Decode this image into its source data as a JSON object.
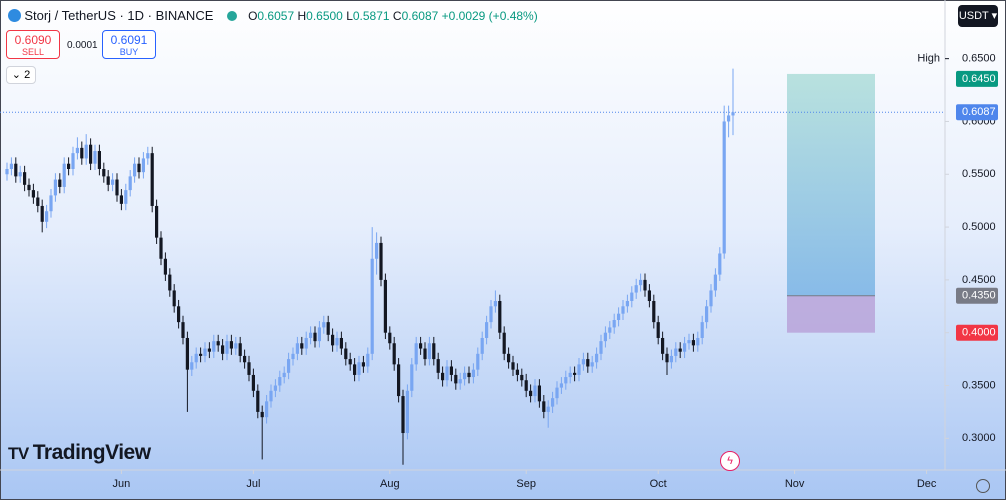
{
  "header": {
    "symbol": "Storj / TetherUS · 1D · BINANCE",
    "o_label": "O",
    "o": "0.6057",
    "h_label": "H",
    "h": "0.6500",
    "l_label": "L",
    "l": "0.5871",
    "c_label": "C",
    "c": "0.6087",
    "change": "+0.0029 (+0.48%)",
    "sell_price": "0.6090",
    "sell": "SELL",
    "spread": "0.0001",
    "buy_price": "0.6091",
    "buy": "BUY",
    "indicators": "2",
    "currency": "USDT",
    "logo": "TradingView"
  },
  "chart_data": {
    "type": "candlestick",
    "up_color": "#79a6f2",
    "down_color": "#131722",
    "ylim": [
      0.27,
      0.715
    ],
    "yticks": [
      {
        "value": 0.3,
        "label": "0.3000"
      },
      {
        "value": 0.35,
        "label": "0.3500"
      },
      {
        "value": 0.4,
        "label": "0.4000"
      },
      {
        "value": 0.45,
        "label": "0.4500"
      },
      {
        "value": 0.5,
        "label": "0.5000"
      },
      {
        "value": 0.55,
        "label": "0.5500"
      },
      {
        "value": 0.6,
        "label": "0.6000"
      }
    ],
    "xticks": [
      {
        "value": 26,
        "label": "Jun"
      },
      {
        "value": 56,
        "label": "Jul"
      },
      {
        "value": 87,
        "label": "Aug"
      },
      {
        "value": 118,
        "label": "Sep"
      },
      {
        "value": 148,
        "label": "Oct"
      },
      {
        "value": 179,
        "label": "Nov"
      },
      {
        "value": 209,
        "label": "Dec"
      }
    ],
    "high": {
      "label": "High",
      "value": 0.65,
      "value_label": "0.6500"
    },
    "last_price": {
      "value": 0.6087,
      "value_label": "0.6087",
      "color": "#4f86ec"
    },
    "position": {
      "target": 0.645,
      "target_label": "0.6450",
      "target_color": "#089981",
      "entry": 0.435,
      "entry_label": "0.4350",
      "entry_color": "#787b86",
      "stop": 0.4,
      "stop_label": "0.4000",
      "stop_color": "#f23645"
    },
    "candles": [
      [
        0.55,
        0.561,
        0.544,
        0.555
      ],
      [
        0.555,
        0.566,
        0.549,
        0.56
      ],
      [
        0.56,
        0.566,
        0.542,
        0.548
      ],
      [
        0.548,
        0.558,
        0.542,
        0.552
      ],
      [
        0.552,
        0.558,
        0.534,
        0.54
      ],
      [
        0.54,
        0.546,
        0.529,
        0.535
      ],
      [
        0.535,
        0.541,
        0.522,
        0.528
      ],
      [
        0.528,
        0.534,
        0.514,
        0.52
      ],
      [
        0.52,
        0.526,
        0.495,
        0.505
      ],
      [
        0.505,
        0.521,
        0.499,
        0.515
      ],
      [
        0.515,
        0.536,
        0.509,
        0.53
      ],
      [
        0.53,
        0.551,
        0.524,
        0.545
      ],
      [
        0.545,
        0.551,
        0.532,
        0.538
      ],
      [
        0.538,
        0.566,
        0.532,
        0.56
      ],
      [
        0.56,
        0.566,
        0.549,
        0.555
      ],
      [
        0.555,
        0.576,
        0.549,
        0.57
      ],
      [
        0.57,
        0.585,
        0.564,
        0.575
      ],
      [
        0.575,
        0.581,
        0.559,
        0.565
      ],
      [
        0.565,
        0.588,
        0.559,
        0.578
      ],
      [
        0.578,
        0.584,
        0.554,
        0.56
      ],
      [
        0.56,
        0.578,
        0.554,
        0.572
      ],
      [
        0.572,
        0.578,
        0.549,
        0.555
      ],
      [
        0.555,
        0.561,
        0.542,
        0.548
      ],
      [
        0.548,
        0.554,
        0.534,
        0.54
      ],
      [
        0.54,
        0.551,
        0.534,
        0.545
      ],
      [
        0.545,
        0.551,
        0.524,
        0.53
      ],
      [
        0.53,
        0.536,
        0.516,
        0.522
      ],
      [
        0.522,
        0.541,
        0.516,
        0.535
      ],
      [
        0.535,
        0.554,
        0.529,
        0.548
      ],
      [
        0.548,
        0.566,
        0.542,
        0.56
      ],
      [
        0.56,
        0.566,
        0.546,
        0.552
      ],
      [
        0.552,
        0.571,
        0.546,
        0.565
      ],
      [
        0.565,
        0.576,
        0.559,
        0.57
      ],
      [
        0.57,
        0.576,
        0.514,
        0.52
      ],
      [
        0.52,
        0.526,
        0.484,
        0.49
      ],
      [
        0.49,
        0.496,
        0.464,
        0.47
      ],
      [
        0.47,
        0.476,
        0.449,
        0.455
      ],
      [
        0.455,
        0.461,
        0.434,
        0.44
      ],
      [
        0.44,
        0.446,
        0.419,
        0.425
      ],
      [
        0.425,
        0.431,
        0.404,
        0.41
      ],
      [
        0.41,
        0.416,
        0.389,
        0.395
      ],
      [
        0.395,
        0.401,
        0.325,
        0.365
      ],
      [
        0.365,
        0.378,
        0.359,
        0.372
      ],
      [
        0.372,
        0.386,
        0.366,
        0.38
      ],
      [
        0.38,
        0.386,
        0.372,
        0.378
      ],
      [
        0.378,
        0.391,
        0.372,
        0.385
      ],
      [
        0.385,
        0.391,
        0.376,
        0.382
      ],
      [
        0.382,
        0.398,
        0.376,
        0.392
      ],
      [
        0.392,
        0.398,
        0.382,
        0.388
      ],
      [
        0.388,
        0.394,
        0.374,
        0.38
      ],
      [
        0.38,
        0.398,
        0.374,
        0.392
      ],
      [
        0.392,
        0.398,
        0.379,
        0.385
      ],
      [
        0.385,
        0.396,
        0.379,
        0.39
      ],
      [
        0.39,
        0.396,
        0.372,
        0.378
      ],
      [
        0.378,
        0.384,
        0.366,
        0.372
      ],
      [
        0.372,
        0.378,
        0.354,
        0.36
      ],
      [
        0.36,
        0.366,
        0.339,
        0.345
      ],
      [
        0.345,
        0.351,
        0.319,
        0.325
      ],
      [
        0.325,
        0.331,
        0.28,
        0.32
      ],
      [
        0.32,
        0.341,
        0.314,
        0.335
      ],
      [
        0.335,
        0.351,
        0.329,
        0.345
      ],
      [
        0.345,
        0.356,
        0.339,
        0.35
      ],
      [
        0.35,
        0.364,
        0.344,
        0.358
      ],
      [
        0.358,
        0.368,
        0.352,
        0.362
      ],
      [
        0.362,
        0.381,
        0.356,
        0.375
      ],
      [
        0.375,
        0.386,
        0.369,
        0.38
      ],
      [
        0.38,
        0.396,
        0.374,
        0.39
      ],
      [
        0.39,
        0.396,
        0.379,
        0.385
      ],
      [
        0.385,
        0.401,
        0.379,
        0.395
      ],
      [
        0.395,
        0.406,
        0.389,
        0.4
      ],
      [
        0.4,
        0.406,
        0.386,
        0.392
      ],
      [
        0.392,
        0.411,
        0.386,
        0.405
      ],
      [
        0.405,
        0.416,
        0.399,
        0.41
      ],
      [
        0.41,
        0.416,
        0.392,
        0.398
      ],
      [
        0.398,
        0.404,
        0.382,
        0.388
      ],
      [
        0.388,
        0.401,
        0.382,
        0.395
      ],
      [
        0.395,
        0.401,
        0.379,
        0.385
      ],
      [
        0.385,
        0.391,
        0.369,
        0.375
      ],
      [
        0.375,
        0.381,
        0.364,
        0.37
      ],
      [
        0.37,
        0.376,
        0.354,
        0.36
      ],
      [
        0.36,
        0.378,
        0.354,
        0.372
      ],
      [
        0.372,
        0.378,
        0.362,
        0.368
      ],
      [
        0.368,
        0.386,
        0.362,
        0.38
      ],
      [
        0.38,
        0.5,
        0.374,
        0.47
      ],
      [
        0.47,
        0.495,
        0.455,
        0.485
      ],
      [
        0.485,
        0.491,
        0.444,
        0.45
      ],
      [
        0.45,
        0.456,
        0.394,
        0.4
      ],
      [
        0.4,
        0.406,
        0.384,
        0.39
      ],
      [
        0.39,
        0.396,
        0.364,
        0.37
      ],
      [
        0.37,
        0.376,
        0.334,
        0.34
      ],
      [
        0.34,
        0.346,
        0.275,
        0.305
      ],
      [
        0.305,
        0.351,
        0.299,
        0.345
      ],
      [
        0.345,
        0.376,
        0.339,
        0.37
      ],
      [
        0.37,
        0.396,
        0.364,
        0.39
      ],
      [
        0.39,
        0.396,
        0.379,
        0.385
      ],
      [
        0.385,
        0.391,
        0.369,
        0.375
      ],
      [
        0.375,
        0.396,
        0.369,
        0.39
      ],
      [
        0.39,
        0.396,
        0.369,
        0.375
      ],
      [
        0.375,
        0.381,
        0.356,
        0.362
      ],
      [
        0.362,
        0.368,
        0.349,
        0.355
      ],
      [
        0.355,
        0.374,
        0.349,
        0.368
      ],
      [
        0.368,
        0.374,
        0.354,
        0.36
      ],
      [
        0.36,
        0.366,
        0.346,
        0.352
      ],
      [
        0.352,
        0.362,
        0.346,
        0.356
      ],
      [
        0.356,
        0.368,
        0.35,
        0.362
      ],
      [
        0.362,
        0.368,
        0.352,
        0.358
      ],
      [
        0.358,
        0.371,
        0.352,
        0.365
      ],
      [
        0.365,
        0.386,
        0.359,
        0.38
      ],
      [
        0.38,
        0.401,
        0.374,
        0.395
      ],
      [
        0.395,
        0.416,
        0.389,
        0.41
      ],
      [
        0.41,
        0.431,
        0.404,
        0.425
      ],
      [
        0.425,
        0.44,
        0.419,
        0.43
      ],
      [
        0.43,
        0.436,
        0.394,
        0.4
      ],
      [
        0.4,
        0.406,
        0.374,
        0.38
      ],
      [
        0.38,
        0.386,
        0.366,
        0.372
      ],
      [
        0.372,
        0.378,
        0.359,
        0.365
      ],
      [
        0.365,
        0.371,
        0.354,
        0.36
      ],
      [
        0.36,
        0.366,
        0.349,
        0.355
      ],
      [
        0.355,
        0.361,
        0.339,
        0.345
      ],
      [
        0.345,
        0.351,
        0.334,
        0.34
      ],
      [
        0.34,
        0.356,
        0.334,
        0.35
      ],
      [
        0.35,
        0.356,
        0.329,
        0.335
      ],
      [
        0.335,
        0.341,
        0.319,
        0.325
      ],
      [
        0.325,
        0.336,
        0.31,
        0.33
      ],
      [
        0.33,
        0.344,
        0.324,
        0.338
      ],
      [
        0.338,
        0.354,
        0.332,
        0.348
      ],
      [
        0.348,
        0.358,
        0.342,
        0.352
      ],
      [
        0.352,
        0.364,
        0.346,
        0.358
      ],
      [
        0.358,
        0.368,
        0.352,
        0.362
      ],
      [
        0.362,
        0.368,
        0.354,
        0.36
      ],
      [
        0.36,
        0.376,
        0.354,
        0.37
      ],
      [
        0.37,
        0.381,
        0.364,
        0.375
      ],
      [
        0.375,
        0.381,
        0.362,
        0.368
      ],
      [
        0.368,
        0.378,
        0.362,
        0.372
      ],
      [
        0.372,
        0.386,
        0.366,
        0.38
      ],
      [
        0.38,
        0.398,
        0.374,
        0.392
      ],
      [
        0.392,
        0.406,
        0.386,
        0.4
      ],
      [
        0.4,
        0.411,
        0.394,
        0.405
      ],
      [
        0.405,
        0.418,
        0.399,
        0.412
      ],
      [
        0.412,
        0.424,
        0.406,
        0.418
      ],
      [
        0.418,
        0.431,
        0.412,
        0.425
      ],
      [
        0.425,
        0.436,
        0.419,
        0.43
      ],
      [
        0.43,
        0.444,
        0.424,
        0.438
      ],
      [
        0.438,
        0.451,
        0.432,
        0.445
      ],
      [
        0.445,
        0.456,
        0.439,
        0.45
      ],
      [
        0.45,
        0.456,
        0.434,
        0.44
      ],
      [
        0.44,
        0.446,
        0.424,
        0.43
      ],
      [
        0.43,
        0.436,
        0.404,
        0.41
      ],
      [
        0.41,
        0.416,
        0.389,
        0.395
      ],
      [
        0.395,
        0.401,
        0.374,
        0.38
      ],
      [
        0.38,
        0.386,
        0.36,
        0.372
      ],
      [
        0.372,
        0.384,
        0.366,
        0.378
      ],
      [
        0.378,
        0.391,
        0.372,
        0.385
      ],
      [
        0.385,
        0.391,
        0.376,
        0.382
      ],
      [
        0.382,
        0.396,
        0.376,
        0.39
      ],
      [
        0.39,
        0.399,
        0.384,
        0.393
      ],
      [
        0.393,
        0.399,
        0.382,
        0.388
      ],
      [
        0.388,
        0.401,
        0.382,
        0.395
      ],
      [
        0.395,
        0.416,
        0.389,
        0.41
      ],
      [
        0.41,
        0.431,
        0.404,
        0.425
      ],
      [
        0.425,
        0.446,
        0.419,
        0.44
      ],
      [
        0.44,
        0.461,
        0.434,
        0.455
      ],
      [
        0.455,
        0.481,
        0.449,
        0.475
      ],
      [
        0.475,
        0.615,
        0.47,
        0.6
      ],
      [
        0.6,
        0.615,
        0.585,
        0.6057
      ],
      [
        0.6057,
        0.65,
        0.5871,
        0.6087
      ]
    ]
  }
}
